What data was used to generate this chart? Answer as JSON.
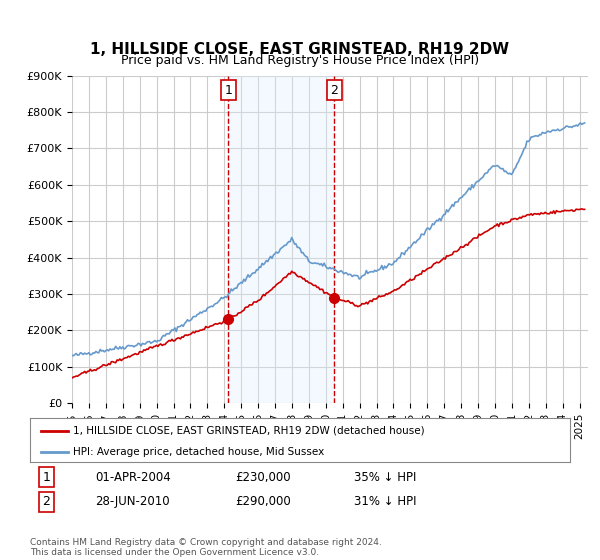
{
  "title": "1, HILLSIDE CLOSE, EAST GRINSTEAD, RH19 2DW",
  "subtitle": "Price paid vs. HM Land Registry's House Price Index (HPI)",
  "ylim": [
    0,
    900000
  ],
  "xlim_start": 1995.0,
  "xlim_end": 2025.5,
  "legend_line1": "1, HILLSIDE CLOSE, EAST GRINSTEAD, RH19 2DW (detached house)",
  "legend_line2": "HPI: Average price, detached house, Mid Sussex",
  "sale1_date": "01-APR-2004",
  "sale1_price": "£230,000",
  "sale1_hpi": "35% ↓ HPI",
  "sale2_date": "28-JUN-2010",
  "sale2_price": "£290,000",
  "sale2_hpi": "31% ↓ HPI",
  "footnote": "Contains HM Land Registry data © Crown copyright and database right 2024.\nThis data is licensed under the Open Government Licence v3.0.",
  "sale1_x": 2004.25,
  "sale2_x": 2010.5,
  "sale1_y": 230000,
  "sale2_y": 290000,
  "red_color": "#cc0000",
  "blue_color": "#6699cc",
  "shade_color": "#ddeeff",
  "vline_color": "#cc0000",
  "background_color": "#ffffff",
  "grid_color": "#cccccc"
}
